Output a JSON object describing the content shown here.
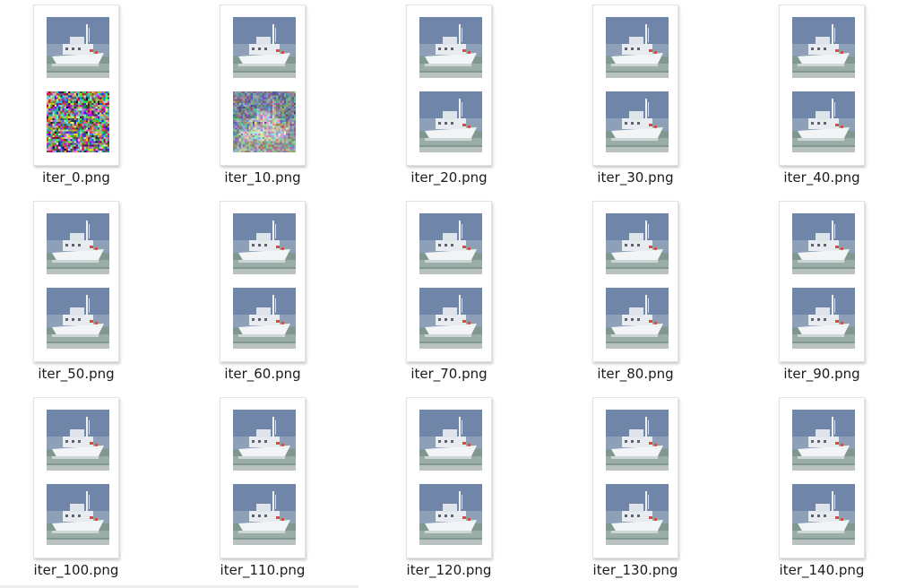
{
  "files": [
    {
      "name": "iter_0.png",
      "second_frame": "noise"
    },
    {
      "name": "iter_10.png",
      "second_frame": "noisy-boat"
    },
    {
      "name": "iter_20.png",
      "second_frame": "boat"
    },
    {
      "name": "iter_30.png",
      "second_frame": "boat"
    },
    {
      "name": "iter_40.png",
      "second_frame": "boat"
    },
    {
      "name": "iter_50.png",
      "second_frame": "boat"
    },
    {
      "name": "iter_60.png",
      "second_frame": "boat"
    },
    {
      "name": "iter_70.png",
      "second_frame": "boat"
    },
    {
      "name": "iter_80.png",
      "second_frame": "boat"
    },
    {
      "name": "iter_90.png",
      "second_frame": "boat"
    },
    {
      "name": "iter_100.png",
      "second_frame": "boat"
    },
    {
      "name": "iter_110.png",
      "second_frame": "boat"
    },
    {
      "name": "iter_120.png",
      "second_frame": "boat"
    },
    {
      "name": "iter_130.png",
      "second_frame": "boat"
    },
    {
      "name": "iter_140.png",
      "second_frame": "boat"
    }
  ],
  "colors": {
    "sky": "#6f86a8",
    "sea": "#7f9892",
    "hull": "#f2f4f6",
    "accent": "#c8553f"
  }
}
